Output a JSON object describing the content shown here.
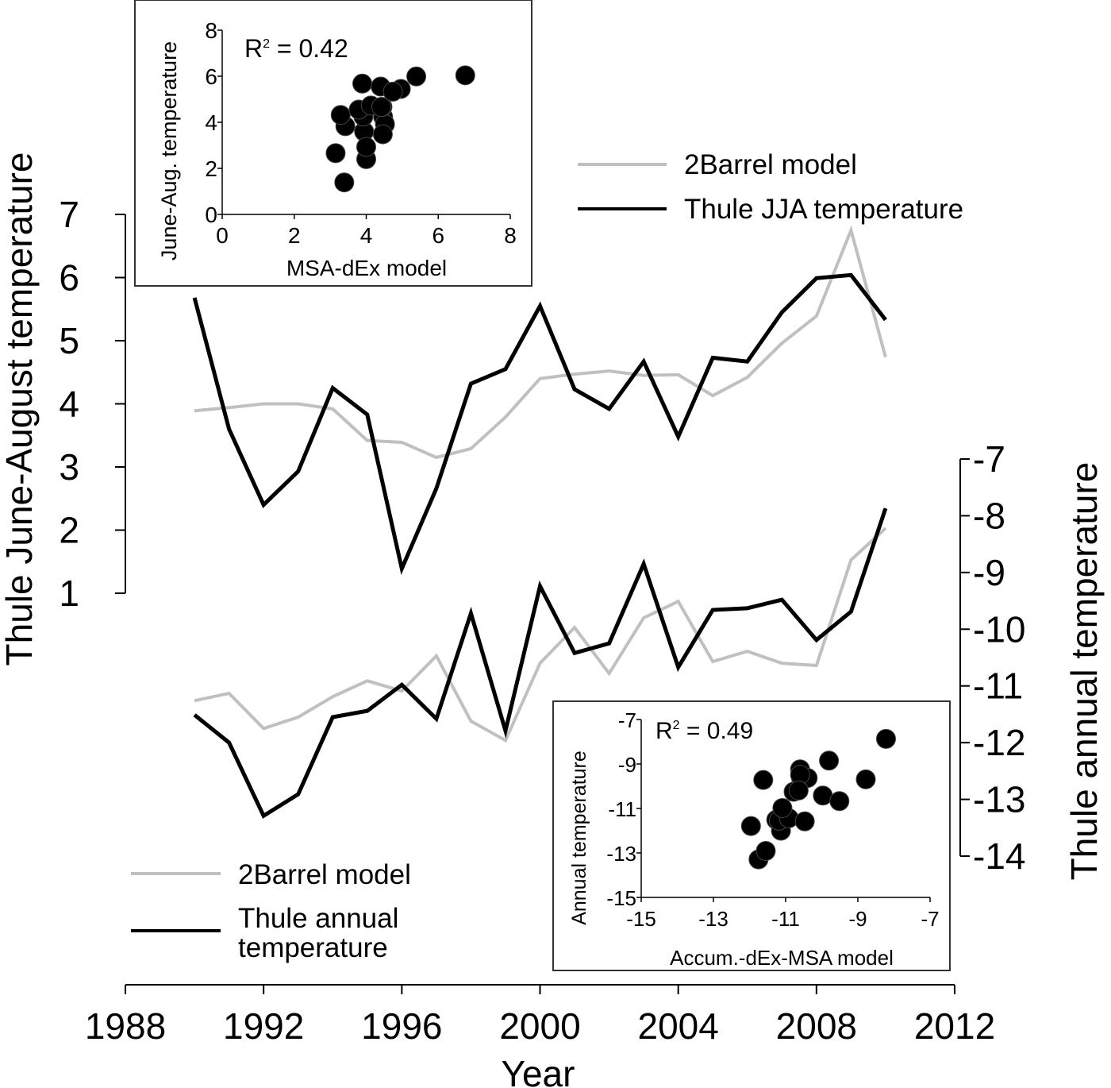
{
  "chart_data": {
    "type": "line",
    "x_label": "Year",
    "x_ticks": [
      "1988",
      "1992",
      "1996",
      "2000",
      "2004",
      "2008",
      "2012"
    ],
    "x_range": [
      1988,
      2012
    ],
    "years": [
      1990,
      1991,
      1992,
      1993,
      1994,
      1995,
      1996,
      1997,
      1998,
      1999,
      2000,
      2001,
      2002,
      2003,
      2004,
      2005,
      2006,
      2007,
      2008,
      2009,
      2010
    ],
    "left_axis": {
      "label": "Thule June-August temperature",
      "range": [
        1,
        7
      ],
      "ticks": [
        "1",
        "2",
        "3",
        "4",
        "5",
        "6",
        "7"
      ]
    },
    "right_axis": {
      "label": "Thule annual temperature",
      "range": [
        -14,
        -7
      ],
      "ticks": [
        "-7",
        "-8",
        "-9",
        "-10",
        "-11",
        "-12",
        "-13",
        "-14"
      ]
    },
    "series": [
      {
        "name": "2Barrel model",
        "axis": "left",
        "color": "#c0c0c0",
        "values": [
          3.89,
          3.94,
          4.0,
          4.0,
          3.92,
          3.42,
          3.39,
          3.15,
          3.29,
          3.79,
          4.4,
          4.47,
          4.52,
          4.45,
          4.46,
          4.13,
          4.42,
          4.96,
          5.39,
          6.75,
          4.74
        ]
      },
      {
        "name": "Thule JJA temperature",
        "axis": "left",
        "color": "#000000",
        "values": [
          5.68,
          3.6,
          2.4,
          2.93,
          4.25,
          3.83,
          1.39,
          2.66,
          4.32,
          4.55,
          5.55,
          4.23,
          3.92,
          4.67,
          3.48,
          4.73,
          4.67,
          5.45,
          5.99,
          6.04,
          5.33
        ]
      },
      {
        "name": "2Barrel model",
        "axis": "right",
        "color": "#c0c0c0",
        "values": [
          -11.26,
          -11.13,
          -11.75,
          -11.55,
          -11.19,
          -10.91,
          -11.09,
          -10.47,
          -11.62,
          -11.96,
          -10.6,
          -9.97,
          -10.78,
          -9.8,
          -9.51,
          -10.57,
          -10.39,
          -10.6,
          -10.64,
          -8.78,
          -8.22
        ]
      },
      {
        "name": "Thule annual temperature",
        "axis": "right",
        "color": "#000000",
        "values": [
          -11.51,
          -12.0,
          -13.29,
          -12.91,
          -11.55,
          -11.44,
          -10.98,
          -11.58,
          -9.72,
          -11.79,
          -9.24,
          -10.42,
          -10.25,
          -8.85,
          -10.67,
          -9.66,
          -9.63,
          -9.48,
          -10.19,
          -9.69,
          -7.87
        ]
      }
    ],
    "legends": [
      {
        "position": "top-right",
        "entries": [
          "2Barrel model",
          "Thule JJA temperature"
        ]
      },
      {
        "position": "bottom-left",
        "entries": [
          "2Barrel model",
          "Thule annual",
          "temperature"
        ]
      }
    ],
    "insets": [
      {
        "type": "scatter",
        "position": "top-left",
        "xlabel": "MSA-dEx model",
        "ylabel": "June-Aug. temperature",
        "annotation_prefix": "R",
        "annotation_sup": "2",
        "annotation_value": "= 0.42",
        "xlim": [
          0,
          8
        ],
        "ylim": [
          0,
          8
        ],
        "x_ticks": [
          "0",
          "2",
          "4",
          "6",
          "8"
        ],
        "y_ticks": [
          "0",
          "2",
          "4",
          "6",
          "8"
        ],
        "x_series": 0,
        "y_series": 1
      },
      {
        "type": "scatter",
        "position": "bottom-right",
        "xlabel": "Accum.-dEx-MSA model",
        "ylabel": "Annual temperature",
        "annotation_prefix": "R",
        "annotation_sup": "2",
        "annotation_value": "= 0.49",
        "xlim": [
          -15,
          -7
        ],
        "ylim": [
          -15,
          -7
        ],
        "x_ticks": [
          "-15",
          "-13",
          "-11",
          "-9",
          "-7"
        ],
        "y_ticks": [
          "-7",
          "-9",
          "-11",
          "-13",
          "-15"
        ],
        "x_series": 2,
        "y_series": 3
      }
    ]
  }
}
